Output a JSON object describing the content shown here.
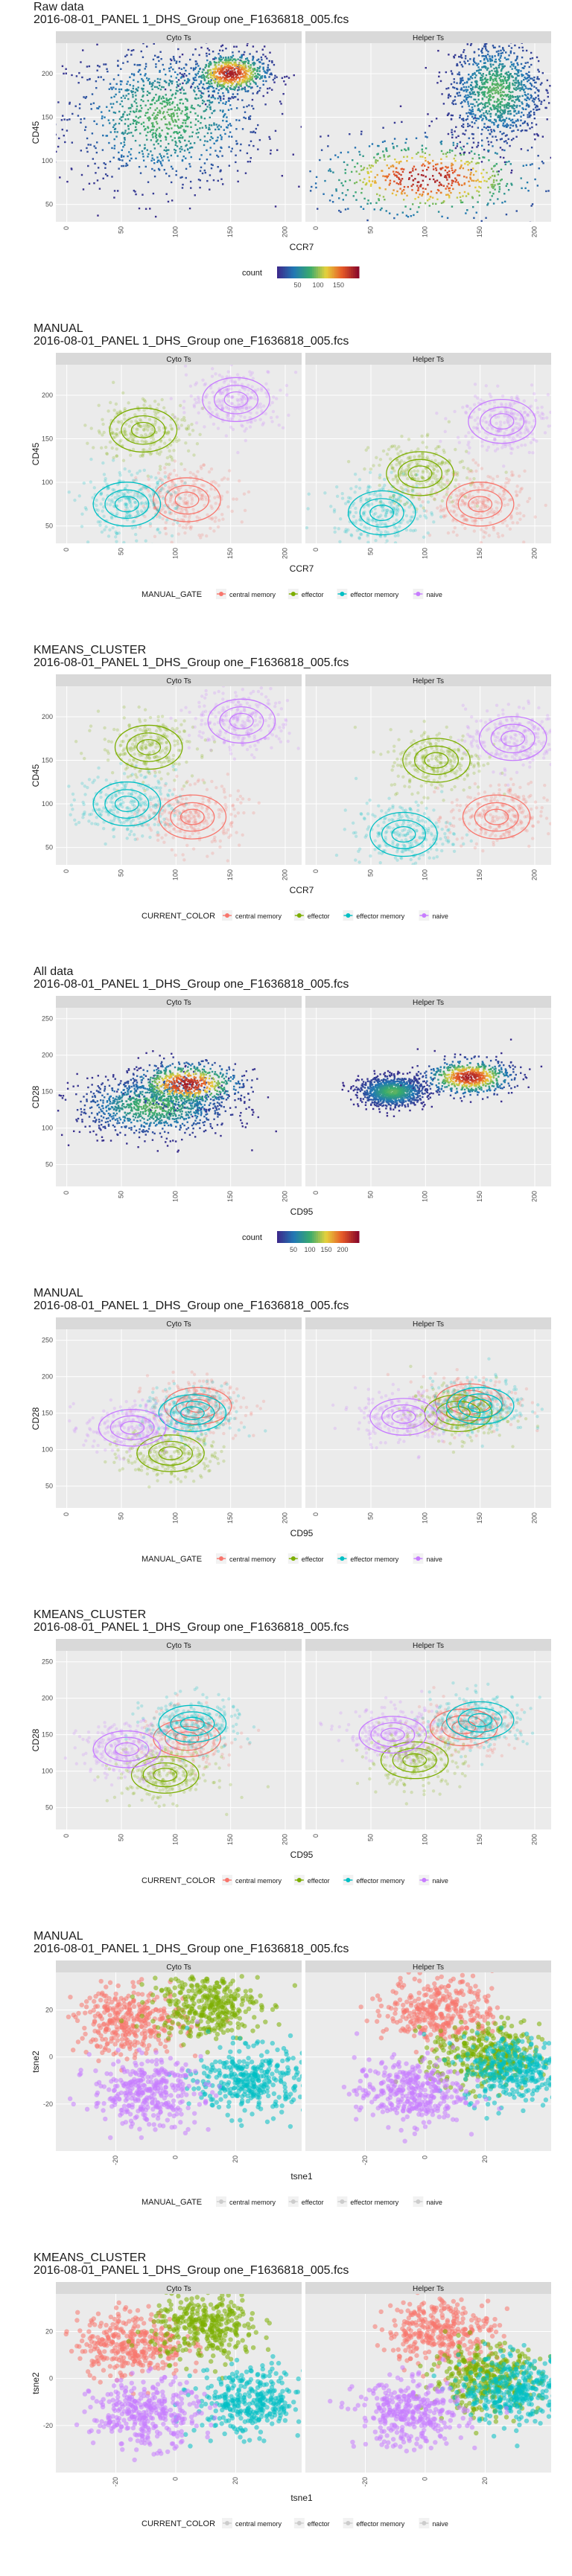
{
  "sections": [
    {
      "id": "raw_ccr7",
      "title": "Raw data",
      "subtitle": "2016-08-01_PANEL 1_DHS_Group one_F1636818_005.fcs",
      "xlabel": "CCR7",
      "ylabel": "CD45",
      "facets": [
        "Cyto Ts",
        "Helper Ts"
      ],
      "kind": "density",
      "legend": {
        "type": "colorbar",
        "title": "count",
        "ticks": [
          "50",
          "100",
          "150"
        ]
      }
    },
    {
      "id": "manual_ccr7",
      "title": "MANUAL",
      "subtitle": "2016-08-01_PANEL 1_DHS_Group one_F1636818_005.fcs",
      "xlabel": "CCR7",
      "ylabel": "CD45",
      "facets": [
        "Cyto Ts",
        "Helper Ts"
      ],
      "kind": "gates",
      "legend": {
        "type": "discrete",
        "title": "MANUAL_GATE",
        "items": [
          "central memory",
          "effector",
          "effector memory",
          "naive"
        ]
      }
    },
    {
      "id": "kmeans_ccr7",
      "title": "KMEANS_CLUSTER",
      "subtitle": "2016-08-01_PANEL 1_DHS_Group one_F1636818_005.fcs",
      "xlabel": "CCR7",
      "ylabel": "CD45",
      "facets": [
        "Cyto Ts",
        "Helper Ts"
      ],
      "kind": "gates",
      "legend": {
        "type": "discrete",
        "title": "CURRENT_COLOR",
        "items": [
          "central memory",
          "effector",
          "effector memory",
          "naive"
        ]
      }
    },
    {
      "id": "all_cd95",
      "title": "All data",
      "subtitle": "2016-08-01_PANEL 1_DHS_Group one_F1636818_005.fcs",
      "xlabel": "CD95",
      "ylabel": "CD28",
      "facets": [
        "Cyto Ts",
        "Helper Ts"
      ],
      "kind": "density",
      "legend": {
        "type": "colorbar",
        "title": "count",
        "ticks": [
          "50",
          "100",
          "150",
          "200"
        ]
      }
    },
    {
      "id": "manual_cd95",
      "title": "MANUAL",
      "subtitle": "2016-08-01_PANEL 1_DHS_Group one_F1636818_005.fcs",
      "xlabel": "CD95",
      "ylabel": "CD28",
      "facets": [
        "Cyto Ts",
        "Helper Ts"
      ],
      "kind": "gates",
      "legend": {
        "type": "discrete",
        "title": "MANUAL_GATE",
        "items": [
          "central memory",
          "effector",
          "effector memory",
          "naive"
        ]
      }
    },
    {
      "id": "kmeans_cd95",
      "title": "KMEANS_CLUSTER",
      "subtitle": "2016-08-01_PANEL 1_DHS_Group one_F1636818_005.fcs",
      "xlabel": "CD95",
      "ylabel": "CD28",
      "facets": [
        "Cyto Ts",
        "Helper Ts"
      ],
      "kind": "gates",
      "legend": {
        "type": "discrete",
        "title": "CURRENT_COLOR",
        "items": [
          "central memory",
          "effector",
          "effector memory",
          "naive"
        ]
      }
    },
    {
      "id": "manual_tsne",
      "title": "MANUAL",
      "subtitle": "2016-08-01_PANEL 1_DHS_Group one_F1636818_005.fcs",
      "xlabel": "tsne1",
      "ylabel": "tsne2",
      "facets": [
        "Cyto Ts",
        "Helper Ts"
      ],
      "kind": "tsne",
      "legend": {
        "type": "discrete",
        "title": "MANUAL_GATE",
        "items": [
          "central memory",
          "effector",
          "effector memory",
          "naive"
        ]
      }
    },
    {
      "id": "kmeans_tsne",
      "title": "KMEANS_CLUSTER",
      "subtitle": "2016-08-01_PANEL 1_DHS_Group one_F1636818_005.fcs",
      "xlabel": "tsne1",
      "ylabel": "tsne2",
      "facets": [
        "Cyto Ts",
        "Helper Ts"
      ],
      "kind": "tsne",
      "legend": {
        "type": "discrete",
        "title": "CURRENT_COLOR",
        "items": [
          "central memory",
          "effector",
          "effector memory",
          "naive"
        ]
      }
    }
  ],
  "colors": {
    "central memory": "#f8766d",
    "effector": "#7cae00",
    "effector memory": "#00bfc4",
    "naive": "#c77cff",
    "panel_bg": "#ebebeb",
    "strip_bg": "#d9d9d9",
    "grid": "#ffffff",
    "density_low": "#3b2c8c",
    "density_high": "#8b0a2a"
  },
  "chart_data": [
    {
      "type": "scatter",
      "title": "Raw data",
      "xlabel": "CCR7",
      "ylabel": "CD45",
      "facets": [
        "Cyto Ts",
        "Helper Ts"
      ],
      "xticks": [
        0,
        50,
        100,
        150,
        200
      ],
      "yticks": [
        50,
        100,
        150,
        200
      ],
      "xlim": [
        -10,
        215
      ],
      "ylim": [
        30,
        235
      ],
      "series": [
        {
          "facet": "Cyto Ts",
          "clusters": [
            {
              "x": 90,
              "y": 150,
              "sx": 45,
              "sy": 40
            },
            {
              "x": 150,
              "y": 200,
              "sx": 18,
              "sy": 12
            }
          ]
        },
        {
          "facet": "Helper Ts",
          "clusters": [
            {
              "x": 165,
              "y": 180,
              "sx": 22,
              "sy": 30
            },
            {
              "x": 100,
              "y": 80,
              "sx": 55,
              "sy": 25
            }
          ]
        }
      ],
      "colorbar": {
        "label": "count",
        "ticks": [
          50,
          100,
          150
        ]
      }
    },
    {
      "type": "scatter",
      "title": "MANUAL",
      "xlabel": "CCR7",
      "ylabel": "CD45",
      "facets": [
        "Cyto Ts",
        "Helper Ts"
      ],
      "xticks": [
        0,
        50,
        100,
        150,
        200
      ],
      "yticks": [
        50,
        100,
        150,
        200
      ],
      "xlim": [
        -10,
        215
      ],
      "ylim": [
        30,
        235
      ],
      "series": [
        {
          "name": "central memory",
          "facet": "Cyto Ts",
          "x": 110,
          "y": 80
        },
        {
          "name": "effector",
          "facet": "Cyto Ts",
          "x": 70,
          "y": 160
        },
        {
          "name": "effector memory",
          "facet": "Cyto Ts",
          "x": 55,
          "y": 75
        },
        {
          "name": "naive",
          "facet": "Cyto Ts",
          "x": 155,
          "y": 195
        },
        {
          "name": "central memory",
          "facet": "Helper Ts",
          "x": 150,
          "y": 75
        },
        {
          "name": "effector",
          "facet": "Helper Ts",
          "x": 95,
          "y": 110
        },
        {
          "name": "effector memory",
          "facet": "Helper Ts",
          "x": 60,
          "y": 65
        },
        {
          "name": "naive",
          "facet": "Helper Ts",
          "x": 170,
          "y": 170
        }
      ]
    },
    {
      "type": "scatter",
      "title": "KMEANS_CLUSTER",
      "xlabel": "CCR7",
      "ylabel": "CD45",
      "facets": [
        "Cyto Ts",
        "Helper Ts"
      ],
      "xticks": [
        0,
        50,
        100,
        150,
        200
      ],
      "yticks": [
        50,
        100,
        150,
        200
      ],
      "xlim": [
        -10,
        215
      ],
      "ylim": [
        30,
        235
      ],
      "series": [
        {
          "name": "central memory",
          "facet": "Cyto Ts",
          "x": 115,
          "y": 85
        },
        {
          "name": "effector",
          "facet": "Cyto Ts",
          "x": 75,
          "y": 165
        },
        {
          "name": "effector memory",
          "facet": "Cyto Ts",
          "x": 55,
          "y": 100
        },
        {
          "name": "naive",
          "facet": "Cyto Ts",
          "x": 160,
          "y": 195
        },
        {
          "name": "central memory",
          "facet": "Helper Ts",
          "x": 165,
          "y": 85
        },
        {
          "name": "effector",
          "facet": "Helper Ts",
          "x": 110,
          "y": 150
        },
        {
          "name": "effector memory",
          "facet": "Helper Ts",
          "x": 80,
          "y": 65
        },
        {
          "name": "naive",
          "facet": "Helper Ts",
          "x": 180,
          "y": 175
        }
      ]
    },
    {
      "type": "scatter",
      "title": "All data",
      "xlabel": "CD95",
      "ylabel": "CD28",
      "facets": [
        "Cyto Ts",
        "Helper Ts"
      ],
      "xticks": [
        0,
        50,
        100,
        150,
        200
      ],
      "yticks": [
        50,
        100,
        150,
        200,
        250
      ],
      "xlim": [
        -10,
        215
      ],
      "ylim": [
        20,
        265
      ],
      "series": [
        {
          "facet": "Cyto Ts",
          "clusters": [
            {
              "x": 80,
              "y": 130,
              "sx": 35,
              "sy": 20
            },
            {
              "x": 110,
              "y": 160,
              "sx": 25,
              "sy": 15
            }
          ]
        },
        {
          "facet": "Helper Ts",
          "clusters": [
            {
              "x": 70,
              "y": 150,
              "sx": 15,
              "sy": 10
            },
            {
              "x": 140,
              "y": 170,
              "sx": 20,
              "sy": 12
            }
          ]
        }
      ],
      "colorbar": {
        "label": "count",
        "ticks": [
          50,
          100,
          150,
          200
        ]
      }
    },
    {
      "type": "scatter",
      "title": "MANUAL",
      "xlabel": "CD95",
      "ylabel": "CD28",
      "facets": [
        "Cyto Ts",
        "Helper Ts"
      ],
      "xticks": [
        0,
        50,
        100,
        150,
        200
      ],
      "yticks": [
        50,
        100,
        150,
        200,
        250
      ],
      "xlim": [
        -10,
        215
      ],
      "ylim": [
        20,
        265
      ],
      "series": [
        {
          "name": "central memory",
          "facet": "Cyto Ts",
          "x": 120,
          "y": 160
        },
        {
          "name": "effector",
          "facet": "Cyto Ts",
          "x": 95,
          "y": 95
        },
        {
          "name": "effector memory",
          "facet": "Cyto Ts",
          "x": 115,
          "y": 150
        },
        {
          "name": "naive",
          "facet": "Cyto Ts",
          "x": 60,
          "y": 130
        },
        {
          "name": "central memory",
          "facet": "Helper Ts",
          "x": 140,
          "y": 165
        },
        {
          "name": "effector",
          "facet": "Helper Ts",
          "x": 130,
          "y": 150
        },
        {
          "name": "effector memory",
          "facet": "Helper Ts",
          "x": 150,
          "y": 160
        },
        {
          "name": "naive",
          "facet": "Helper Ts",
          "x": 80,
          "y": 145
        }
      ]
    },
    {
      "type": "scatter",
      "title": "KMEANS_CLUSTER",
      "xlabel": "CD95",
      "ylabel": "CD28",
      "facets": [
        "Cyto Ts",
        "Helper Ts"
      ],
      "xticks": [
        0,
        50,
        100,
        150,
        200
      ],
      "yticks": [
        50,
        100,
        150,
        200,
        250
      ],
      "xlim": [
        -10,
        215
      ],
      "ylim": [
        20,
        265
      ],
      "series": [
        {
          "name": "central memory",
          "facet": "Cyto Ts",
          "x": 110,
          "y": 145
        },
        {
          "name": "effector",
          "facet": "Cyto Ts",
          "x": 90,
          "y": 95
        },
        {
          "name": "effector memory",
          "facet": "Cyto Ts",
          "x": 115,
          "y": 165
        },
        {
          "name": "naive",
          "facet": "Cyto Ts",
          "x": 55,
          "y": 130
        },
        {
          "name": "central memory",
          "facet": "Helper Ts",
          "x": 135,
          "y": 160
        },
        {
          "name": "effector",
          "facet": "Helper Ts",
          "x": 90,
          "y": 115
        },
        {
          "name": "effector memory",
          "facet": "Helper Ts",
          "x": 150,
          "y": 170
        },
        {
          "name": "naive",
          "facet": "Helper Ts",
          "x": 70,
          "y": 150
        }
      ]
    },
    {
      "type": "scatter",
      "title": "MANUAL",
      "xlabel": "tsne1",
      "ylabel": "tsne2",
      "facets": [
        "Cyto Ts",
        "Helper Ts"
      ],
      "xticks": [
        -20,
        0,
        20
      ],
      "yticks": [
        -20,
        0,
        20
      ],
      "xlim": [
        -40,
        42
      ],
      "ylim": [
        -40,
        36
      ],
      "series": [
        {
          "name": "central memory",
          "facet": "Cyto Ts",
          "x": -15,
          "y": 15
        },
        {
          "name": "effector",
          "facet": "Cyto Ts",
          "x": 10,
          "y": 22
        },
        {
          "name": "effector memory",
          "facet": "Cyto Ts",
          "x": 25,
          "y": -10
        },
        {
          "name": "naive",
          "facet": "Cyto Ts",
          "x": -10,
          "y": -15
        },
        {
          "name": "central memory",
          "facet": "Helper Ts",
          "x": 5,
          "y": 20
        },
        {
          "name": "effector",
          "facet": "Helper Ts",
          "x": 20,
          "y": 0
        },
        {
          "name": "effector memory",
          "facet": "Helper Ts",
          "x": 30,
          "y": -5
        },
        {
          "name": "naive",
          "facet": "Helper Ts",
          "x": -5,
          "y": -15
        }
      ]
    },
    {
      "type": "scatter",
      "title": "KMEANS_CLUSTER",
      "xlabel": "tsne1",
      "ylabel": "tsne2",
      "facets": [
        "Cyto Ts",
        "Helper Ts"
      ],
      "xticks": [
        -20,
        0,
        20
      ],
      "yticks": [
        -20,
        0,
        20
      ],
      "xlim": [
        -40,
        42
      ],
      "ylim": [
        -40,
        36
      ],
      "series": [
        {
          "name": "central memory",
          "facet": "Cyto Ts",
          "x": -15,
          "y": 15
        },
        {
          "name": "effector",
          "facet": "Cyto Ts",
          "x": 10,
          "y": 22
        },
        {
          "name": "effector memory",
          "facet": "Cyto Ts",
          "x": 25,
          "y": -10
        },
        {
          "name": "naive",
          "facet": "Cyto Ts",
          "x": -10,
          "y": -15
        },
        {
          "name": "central memory",
          "facet": "Helper Ts",
          "x": 5,
          "y": 20
        },
        {
          "name": "effector",
          "facet": "Helper Ts",
          "x": 20,
          "y": 0
        },
        {
          "name": "effector memory",
          "facet": "Helper Ts",
          "x": 30,
          "y": -5
        },
        {
          "name": "naive",
          "facet": "Helper Ts",
          "x": -5,
          "y": -15
        }
      ]
    }
  ]
}
